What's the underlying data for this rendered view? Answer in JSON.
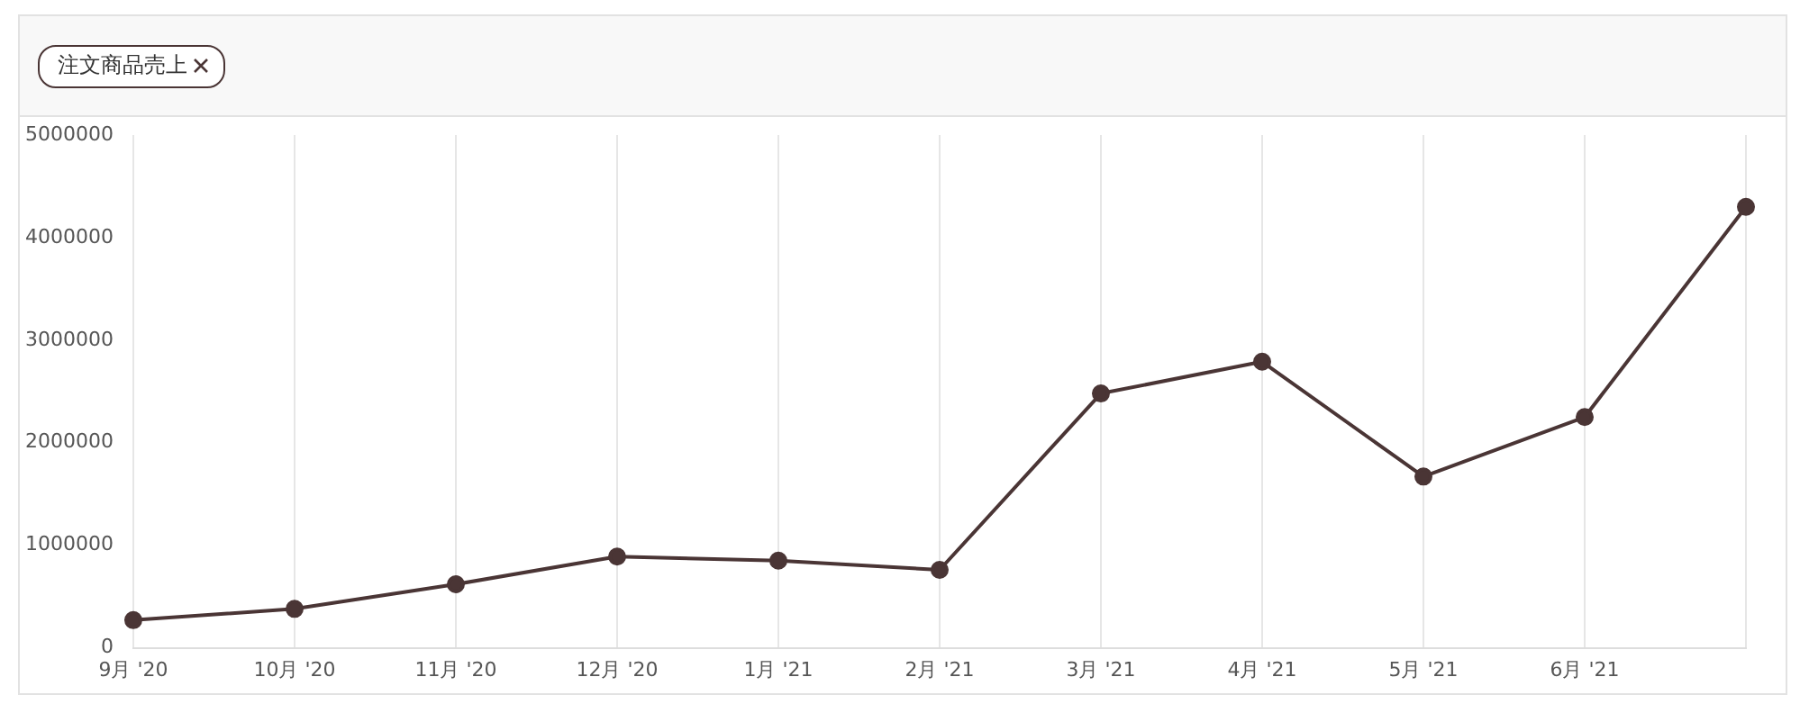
{
  "chart_data": {
    "type": "line",
    "categories": [
      "9月 '20",
      "10月 '20",
      "11月 '20",
      "12月 '20",
      "1月 '21",
      "2月 '21",
      "3月 '21",
      "4月 '21",
      "5月 '21",
      "6月 '21",
      null
    ],
    "series": [
      {
        "name": "注文商品売上",
        "color": "#4a3535",
        "values": [
          270000,
          380000,
          620000,
          890000,
          850000,
          760000,
          2480000,
          2790000,
          1670000,
          2250000,
          4300000
        ]
      }
    ],
    "ylim": [
      0,
      5000000
    ],
    "yticks": [
      0,
      1000000,
      2000000,
      3000000,
      4000000,
      5000000
    ],
    "grid": "x",
    "legend": "top left",
    "marker": "circle",
    "line_style": "solid"
  }
}
